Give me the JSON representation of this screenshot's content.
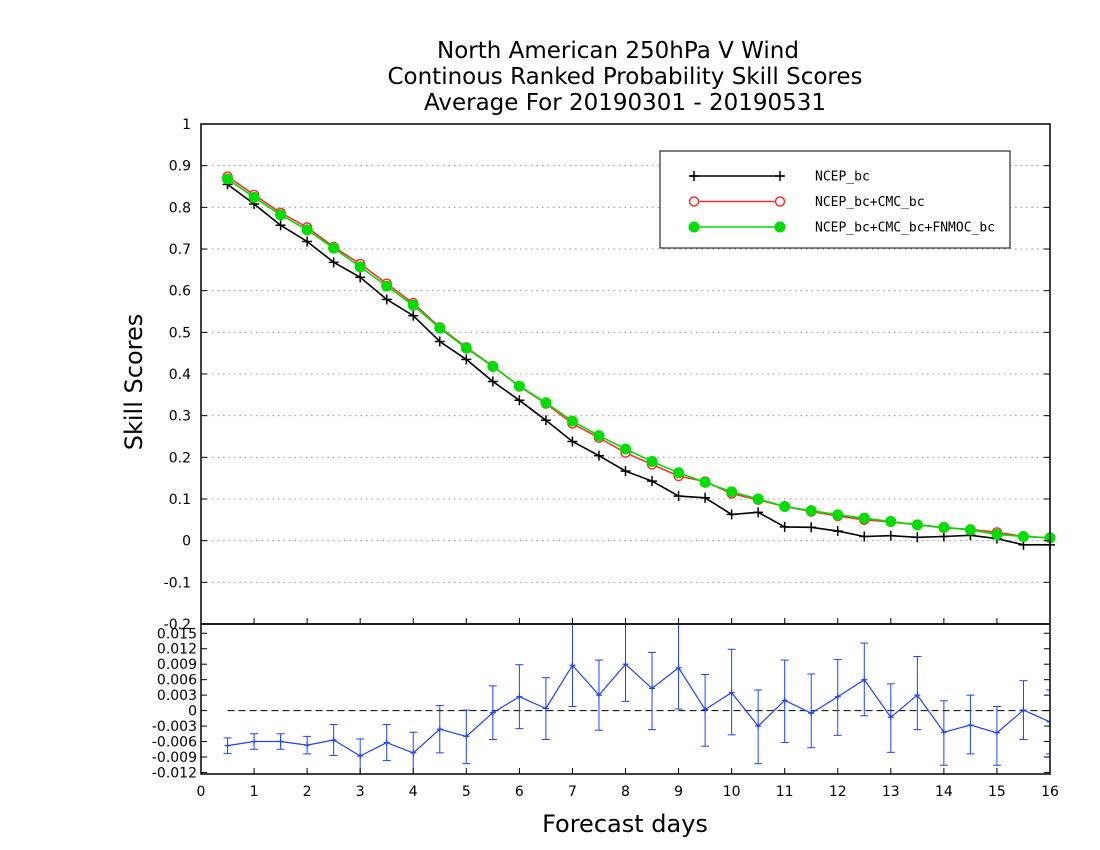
{
  "chart_data": [
    {
      "type": "line",
      "title": [
        "North American 250hPa V Wind",
        "Continous Ranked Probability Skill Scores",
        "Average For 20190301 - 20190531"
      ],
      "ylabel": "Skill Scores",
      "xlim": [
        0,
        16
      ],
      "ylim": [
        -0.2,
        1
      ],
      "y_ticks": [
        "-0.2",
        "-0.1",
        "0",
        "0.1",
        "0.2",
        "0.3",
        "0.4",
        "0.5",
        "0.6",
        "0.7",
        "0.8",
        "0.9",
        "1"
      ],
      "grid": true,
      "legend_position": "top-right",
      "x": [
        0.5,
        1.0,
        1.5,
        2.0,
        2.5,
        3.0,
        3.5,
        4.0,
        4.5,
        5.0,
        5.5,
        6.0,
        6.5,
        7.0,
        7.5,
        8.0,
        8.5,
        9.0,
        9.5,
        10.0,
        10.5,
        11.0,
        11.5,
        12.0,
        12.5,
        13.0,
        13.5,
        14.0,
        14.5,
        15.0,
        15.5,
        16.0
      ],
      "series": [
        {
          "name": "NCEP_bc",
          "color": "#000000",
          "marker": "plus",
          "values": [
            0.855,
            0.808,
            0.757,
            0.718,
            0.668,
            0.632,
            0.579,
            0.54,
            0.478,
            0.435,
            0.382,
            0.337,
            0.289,
            0.238,
            0.204,
            0.167,
            0.143,
            0.107,
            0.103,
            0.063,
            0.068,
            0.033,
            0.032,
            0.023,
            0.01,
            0.012,
            0.008,
            0.01,
            0.013,
            0.005,
            -0.01,
            -0.01
          ]
        },
        {
          "name": "NCEP_bc+CMC_bc",
          "color": "#ff3030",
          "marker": "open-circle",
          "values": [
            0.874,
            0.83,
            0.787,
            0.752,
            0.705,
            0.664,
            0.617,
            0.57,
            0.512,
            0.464,
            0.419,
            0.37,
            0.329,
            0.281,
            0.247,
            0.211,
            0.183,
            0.155,
            0.142,
            0.113,
            0.098,
            0.082,
            0.07,
            0.059,
            0.05,
            0.045,
            0.038,
            0.031,
            0.027,
            0.02,
            0.01,
            0.007
          ]
        },
        {
          "name": "NCEP_bc+CMC_bc+FNMOC_bc",
          "color": "#00dd00",
          "marker": "filled-circle",
          "values": [
            0.868,
            0.824,
            0.782,
            0.746,
            0.702,
            0.657,
            0.611,
            0.565,
            0.51,
            0.462,
            0.418,
            0.371,
            0.331,
            0.287,
            0.252,
            0.22,
            0.19,
            0.163,
            0.14,
            0.117,
            0.1,
            0.082,
            0.072,
            0.062,
            0.054,
            0.046,
            0.038,
            0.032,
            0.026,
            0.015,
            0.01,
            0.007
          ]
        }
      ]
    },
    {
      "type": "line",
      "xlabel": "Forecast days",
      "xlim": [
        0,
        16
      ],
      "x_ticks": [
        "0",
        "1",
        "2",
        "3",
        "4",
        "5",
        "6",
        "7",
        "8",
        "9",
        "10",
        "11",
        "12",
        "13",
        "14",
        "15",
        "16"
      ],
      "ylim": [
        -0.0123,
        0.0168
      ],
      "y_ticks": [
        "-0.012",
        "-0.009",
        "-0.006",
        "-0.003",
        "0",
        "0.003",
        "0.006",
        "0.009",
        "0.012",
        "0.015"
      ],
      "zero_line": "dashed",
      "series": [
        {
          "color": "#2040ff",
          "marker": "plus",
          "x": [
            0.5,
            1.0,
            1.5,
            2.0,
            2.5,
            3.0,
            3.5,
            4.0,
            4.5,
            5.0,
            5.5,
            6.0,
            6.5,
            7.0,
            7.5,
            8.0,
            8.5,
            9.0,
            9.5,
            10.0,
            10.5,
            11.0,
            11.5,
            12.0,
            12.5,
            13.0,
            13.5,
            14.0,
            14.5,
            15.0,
            15.5,
            16.0
          ],
          "values": [
            -0.0068,
            -0.006,
            -0.006,
            -0.0067,
            -0.0057,
            -0.0088,
            -0.0062,
            -0.0082,
            -0.0036,
            -0.005,
            -0.0004,
            0.0027,
            0.0004,
            0.0088,
            0.003,
            0.009,
            0.0043,
            0.0083,
            0.0002,
            0.0035,
            -0.003,
            0.002,
            -0.0005,
            0.0027,
            0.006,
            -0.0013,
            0.003,
            -0.0042,
            -0.0028,
            -0.0043,
            0.0001,
            -0.0022
          ],
          "upper": [
            -0.0053,
            -0.0045,
            -0.0045,
            -0.005,
            -0.0027,
            -0.0055,
            -0.0027,
            -0.0042,
            0.001,
            0.0001,
            0.0048,
            0.0089,
            0.0064,
            0.0168,
            0.0098,
            0.0168,
            0.0113,
            0.0168,
            0.007,
            0.0119,
            0.004,
            0.0098,
            0.0071,
            0.0099,
            0.0131,
            0.0052,
            0.0105,
            0.0019,
            0.003,
            0.0008,
            0.0058,
            0.004
          ],
          "lower": [
            -0.0083,
            -0.0075,
            -0.0075,
            -0.0084,
            -0.0087,
            -0.0123,
            -0.0097,
            -0.0123,
            -0.0082,
            -0.0103,
            -0.0056,
            -0.0035,
            -0.0056,
            0.0008,
            -0.0038,
            0.0018,
            -0.0037,
            0.0003,
            -0.0069,
            -0.0047,
            -0.0103,
            -0.0062,
            -0.0072,
            -0.0048,
            -0.001,
            -0.0081,
            -0.0037,
            -0.0106,
            -0.0084,
            -0.0106,
            -0.0056,
            -0.0084
          ]
        }
      ]
    }
  ]
}
